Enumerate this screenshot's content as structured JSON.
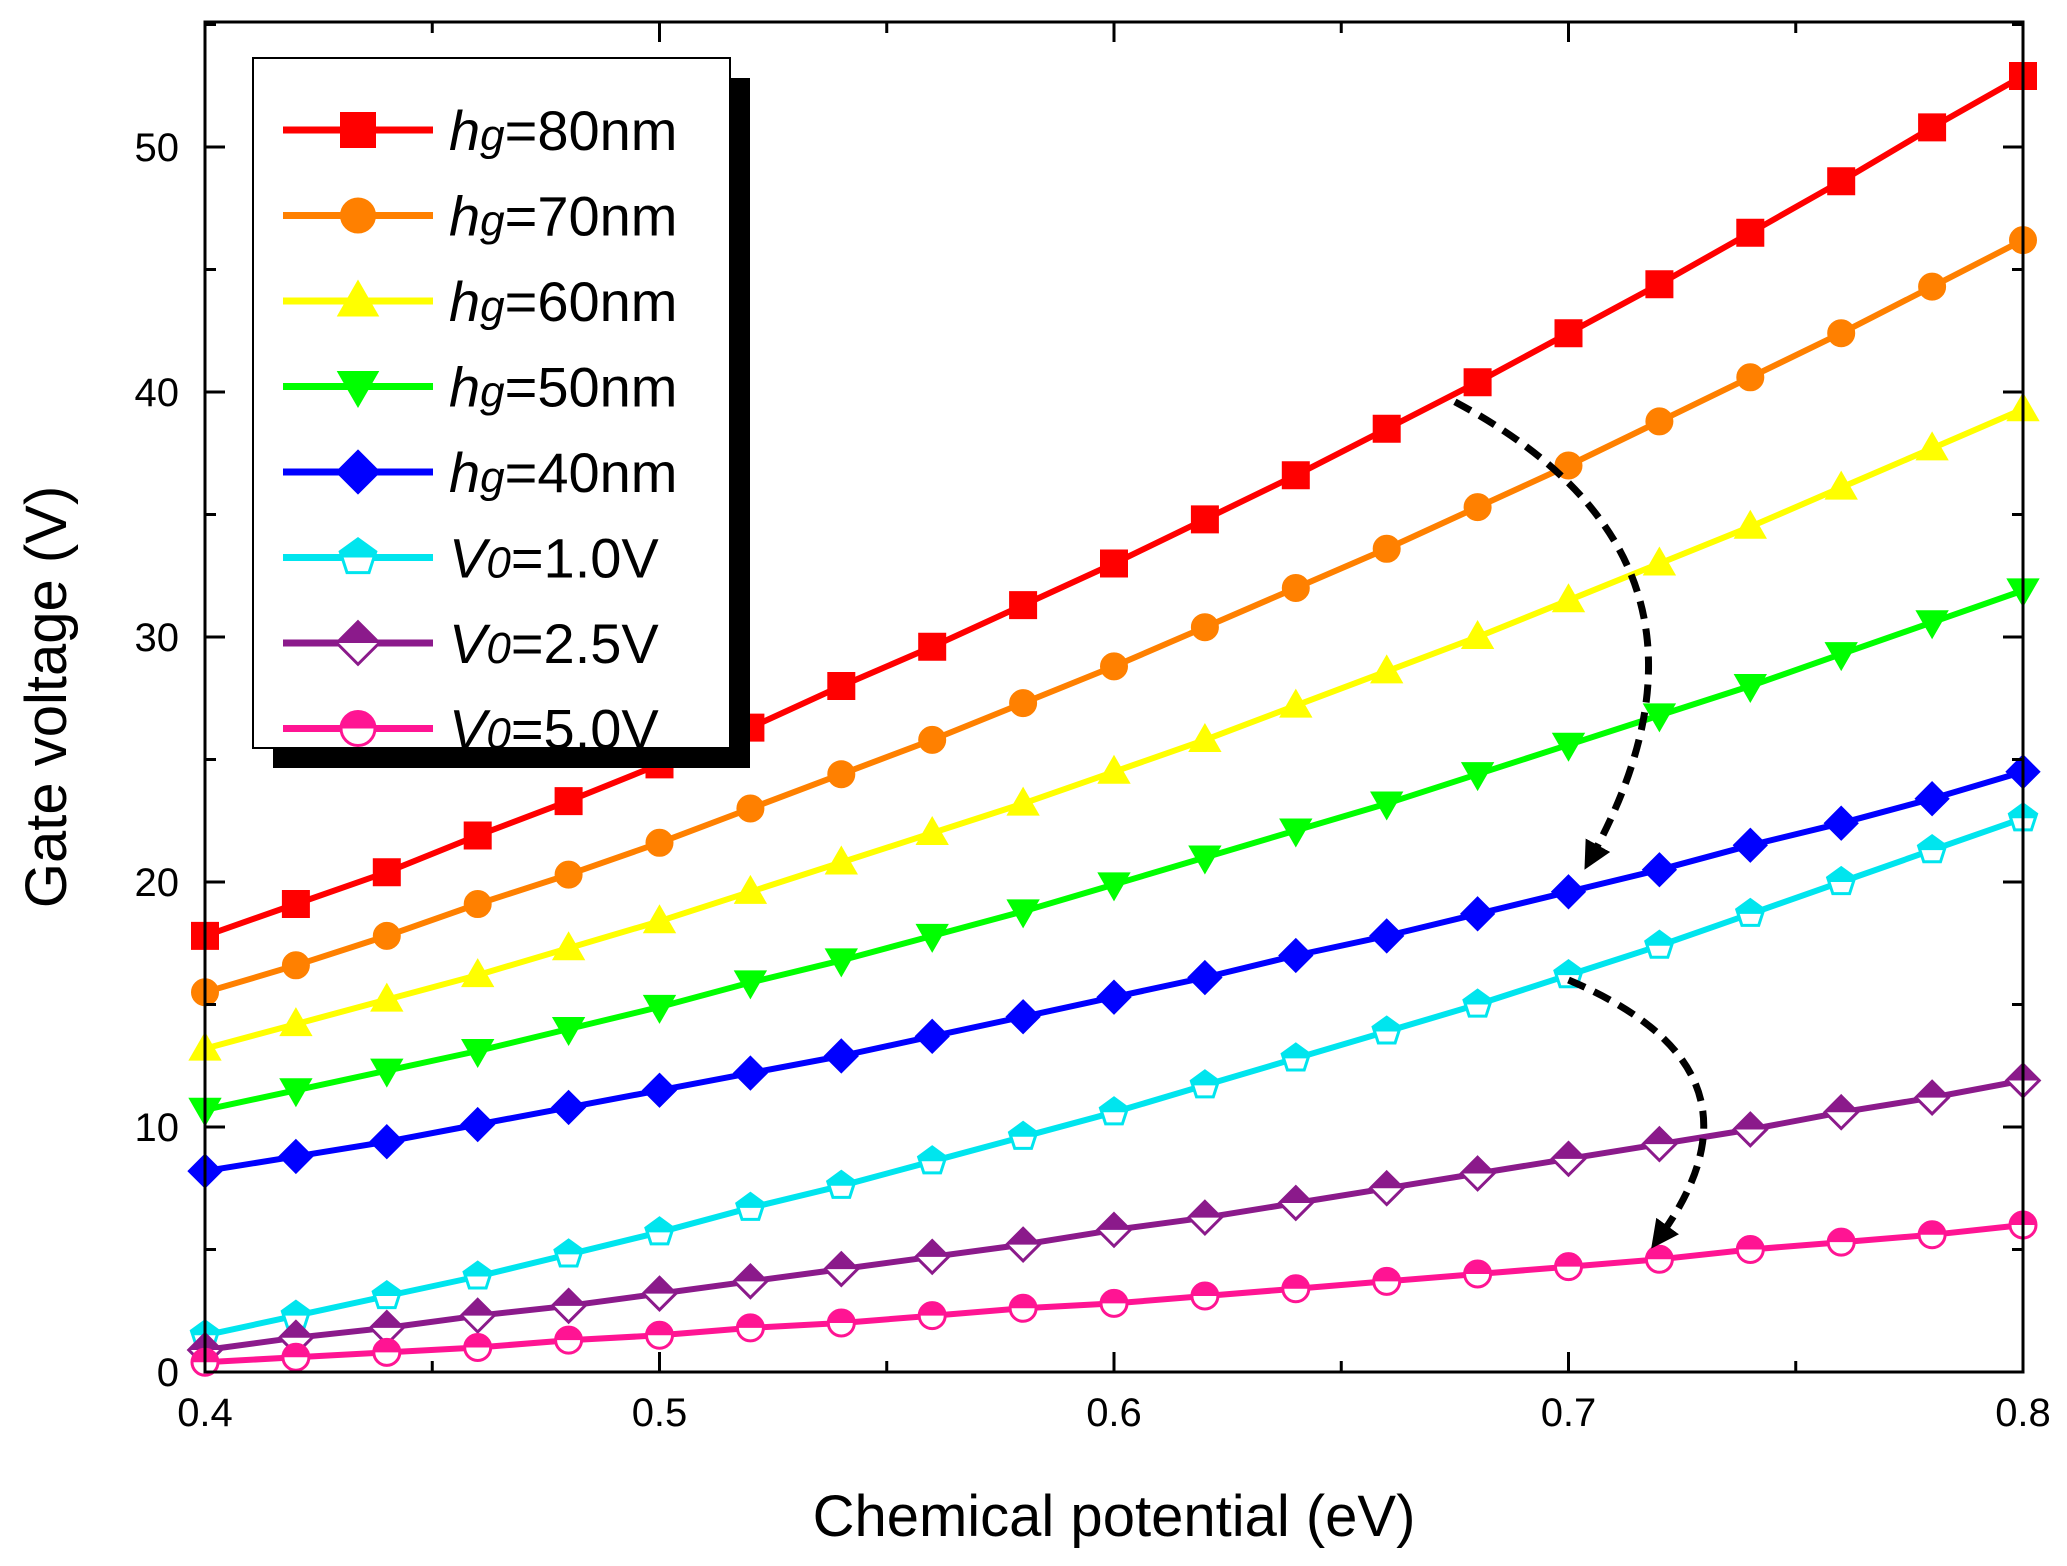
{
  "chart_data": {
    "type": "line",
    "title": "",
    "xlabel": "Chemical potential (eV)",
    "ylabel": "Gate voltage (V)",
    "xlim": [
      0.4,
      0.8
    ],
    "ylim": [
      0,
      55
    ],
    "xticks": [
      0.4,
      0.5,
      0.6,
      0.7,
      0.8
    ],
    "xtick_labels": [
      "0.4",
      "0.5",
      "0.6",
      "0.7",
      "0.8"
    ],
    "yticks": [
      0,
      10,
      20,
      30,
      40,
      50
    ],
    "ytick_labels": [
      "0",
      "10",
      "20",
      "30",
      "40",
      "50"
    ],
    "legend_position": "top-left",
    "x": [
      0.4,
      0.42,
      0.44,
      0.46,
      0.48,
      0.5,
      0.52,
      0.54,
      0.56,
      0.58,
      0.6,
      0.62,
      0.64,
      0.66,
      0.68,
      0.7,
      0.72,
      0.74,
      0.76,
      0.78,
      0.8
    ],
    "series": [
      {
        "name": "h",
        "sub": "g",
        "rest": "=80nm",
        "color": "#ff0000",
        "marker": "square",
        "fill": "filled",
        "values": [
          17.8,
          19.1,
          20.4,
          21.9,
          23.3,
          24.8,
          26.3,
          28.0,
          29.6,
          31.3,
          33.0,
          34.8,
          36.6,
          38.5,
          40.4,
          42.4,
          44.4,
          46.5,
          48.6,
          50.8,
          52.9
        ]
      },
      {
        "name": "h",
        "sub": "g",
        "rest": "=70nm",
        "color": "#ff8000",
        "marker": "circle",
        "fill": "filled",
        "values": [
          15.5,
          16.6,
          17.8,
          19.1,
          20.3,
          21.6,
          23.0,
          24.4,
          25.8,
          27.3,
          28.8,
          30.4,
          32.0,
          33.6,
          35.3,
          37.0,
          38.8,
          40.6,
          42.4,
          44.3,
          46.2
        ]
      },
      {
        "name": "h",
        "sub": "g",
        "rest": "=60nm",
        "color": "#ffff00",
        "marker": "triangle-up",
        "fill": "filled",
        "values": [
          13.2,
          14.2,
          15.2,
          16.2,
          17.3,
          18.4,
          19.6,
          20.8,
          22.0,
          23.2,
          24.5,
          25.8,
          27.2,
          28.6,
          30.0,
          31.5,
          33.0,
          34.5,
          36.1,
          37.7,
          39.3
        ]
      },
      {
        "name": "h",
        "sub": "g",
        "rest": "=50nm",
        "color": "#00ff00",
        "marker": "triangle-down",
        "fill": "filled",
        "values": [
          10.7,
          11.5,
          12.3,
          13.1,
          14.0,
          14.9,
          15.9,
          16.8,
          17.8,
          18.8,
          19.9,
          21.0,
          22.1,
          23.2,
          24.4,
          25.6,
          26.8,
          28.0,
          29.3,
          30.6,
          31.9
        ]
      },
      {
        "name": "h",
        "sub": "g",
        "rest": "=40nm",
        "color": "#0000ff",
        "marker": "diamond",
        "fill": "filled",
        "values": [
          8.2,
          8.8,
          9.4,
          10.1,
          10.8,
          11.5,
          12.2,
          12.9,
          13.7,
          14.5,
          15.3,
          16.1,
          17.0,
          17.8,
          18.7,
          19.6,
          20.5,
          21.5,
          22.4,
          23.4,
          24.5
        ]
      },
      {
        "name": "V",
        "sub": "0",
        "rest": "=1.0V",
        "color": "#00e5ee",
        "marker": "pentagon",
        "fill": "half",
        "values": [
          1.5,
          2.3,
          3.1,
          3.9,
          4.8,
          5.7,
          6.7,
          7.6,
          8.6,
          9.6,
          10.6,
          11.7,
          12.8,
          13.9,
          15.0,
          16.2,
          17.4,
          18.7,
          20.0,
          21.3,
          22.6
        ]
      },
      {
        "name": "V",
        "sub": "0",
        "rest": "=2.5V",
        "color": "#8b1a8b",
        "marker": "diamond",
        "fill": "half",
        "values": [
          0.9,
          1.4,
          1.8,
          2.3,
          2.7,
          3.2,
          3.7,
          4.2,
          4.7,
          5.2,
          5.8,
          6.3,
          6.9,
          7.5,
          8.1,
          8.7,
          9.3,
          9.9,
          10.6,
          11.2,
          11.9
        ]
      },
      {
        "name": "V",
        "sub": "0",
        "rest": "=5.0V",
        "color": "#ff1493",
        "marker": "circle",
        "fill": "half",
        "values": [
          0.4,
          0.6,
          0.8,
          1.0,
          1.3,
          1.5,
          1.8,
          2.0,
          2.3,
          2.6,
          2.8,
          3.1,
          3.4,
          3.7,
          4.0,
          4.3,
          4.6,
          5.0,
          5.3,
          5.6,
          6.0
        ]
      }
    ],
    "annotations": [
      {
        "type": "dashed-arrow",
        "from": [
          0.675,
          39.6
        ],
        "to": [
          0.705,
          21.0
        ]
      },
      {
        "type": "dashed-arrow",
        "from": [
          0.7,
          16.0
        ],
        "to": [
          0.72,
          5.5
        ]
      }
    ]
  }
}
